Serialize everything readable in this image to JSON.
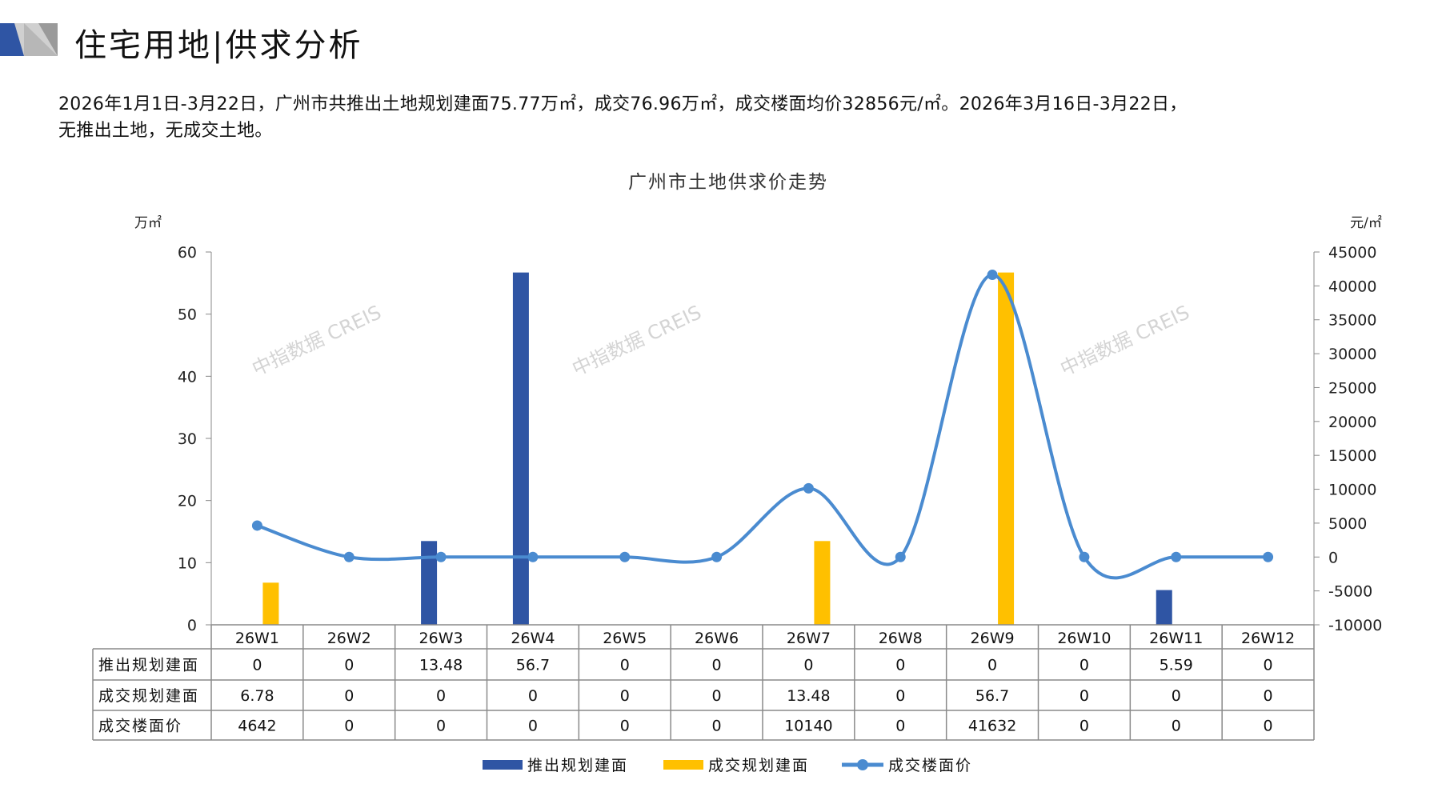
{
  "header": {
    "title": "住宅用地|供求分析"
  },
  "summary": {
    "line1": "2026年1月1日-3月22日，广州市共推出土地规划建面75.77万㎡，成交76.96万㎡，成交楼面均价32856元/㎡。2026年3月16日-3月22日，",
    "line2": "无推出土地，无成交土地。"
  },
  "watermark": "中指数据 CREIS",
  "colors": {
    "supply": "#2F55A4",
    "deal": "#FFC000",
    "price": "#4A8BD0",
    "logo_blue": "#2F55A4",
    "logo_grey": "#A6A6A6"
  },
  "chart_data": {
    "type": "bar+line",
    "title": "广州市土地供求价走势",
    "ylabel_left": "万㎡",
    "ylabel_right": "元/㎡",
    "ylim_left": [
      0,
      60
    ],
    "yticks_left": [
      0,
      10,
      20,
      30,
      40,
      50,
      60
    ],
    "ylim_right": [
      -10000,
      45000
    ],
    "yticks_right": [
      -10000,
      -5000,
      0,
      5000,
      10000,
      15000,
      20000,
      25000,
      30000,
      35000,
      40000,
      45000
    ],
    "grid": false,
    "legend": "bottom",
    "data_table": true,
    "categories": [
      "26W1",
      "26W2",
      "26W3",
      "26W4",
      "26W5",
      "26W6",
      "26W7",
      "26W8",
      "26W9",
      "26W10",
      "26W11",
      "26W12"
    ],
    "series": [
      {
        "name": "推出规划建面",
        "type": "bar",
        "axis": "left",
        "values": [
          0,
          0,
          13.48,
          56.7,
          0,
          0,
          0,
          0,
          0,
          0,
          5.59,
          0
        ]
      },
      {
        "name": "成交规划建面",
        "type": "bar",
        "axis": "left",
        "values": [
          6.78,
          0,
          0,
          0,
          0,
          0,
          13.48,
          0,
          56.7,
          0,
          0,
          0
        ]
      },
      {
        "name": "成交楼面价",
        "type": "line",
        "smooth": true,
        "axis": "right",
        "values": [
          4642,
          0,
          0,
          0,
          0,
          0,
          10140,
          0,
          41632,
          0,
          0,
          0
        ]
      }
    ]
  }
}
